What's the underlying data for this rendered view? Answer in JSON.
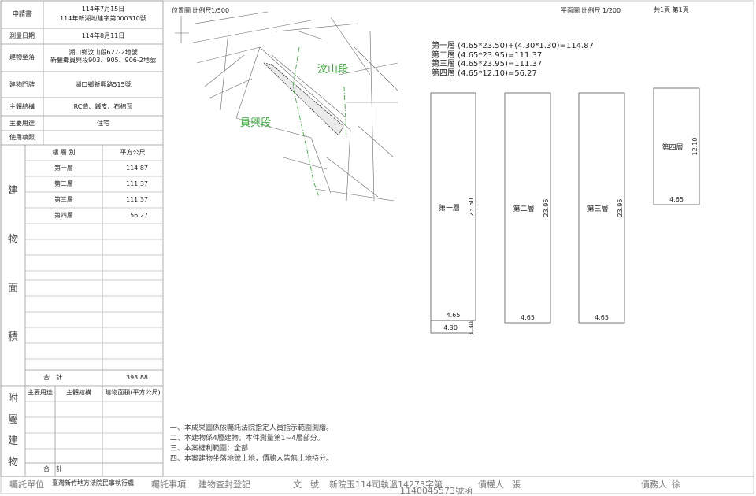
{
  "header": {
    "application_label": "申請書",
    "application_date": "114年7月15日",
    "application_no": "114年新湖地建字第000310號",
    "survey_date_label": "測量日期",
    "survey_date": "114年8月11日",
    "location_label": "建物坐落",
    "location_lines": [
      "湖口鄉汶山段627-2地號",
      "新豐鄉員興段903、905、906-2地號"
    ],
    "address_label": "建物門牌",
    "address": "湖口鄉新興路515號",
    "structure_label": "主體結構",
    "structure": "RC造、鐵皮、石棉瓦",
    "use_label": "主要用途",
    "use": "住宅",
    "license_label": "使用執照"
  },
  "area_table": {
    "side_label": [
      "建",
      "物",
      "面",
      "積"
    ],
    "columns": [
      "樓 層 別",
      "平方公尺"
    ],
    "rows": [
      [
        "第一層",
        "114.87"
      ],
      [
        "第二層",
        "111.37"
      ],
      [
        "第三層",
        "111.37"
      ],
      [
        "第四層",
        "56.27"
      ]
    ],
    "total_label": "合　計",
    "total": "393.88"
  },
  "annex_table": {
    "side_label": [
      "附",
      "屬",
      "建",
      "物"
    ],
    "columns": [
      "主要用途",
      "主體結構",
      "建物面積(平方公尺)"
    ],
    "total_label": "合　計"
  },
  "location_map": {
    "title": "位置圖 比例尺",
    "scale": "1/500",
    "sections": [
      "汶山段",
      "員興段"
    ]
  },
  "notes": [
    "一、本成果圖係依囑託法院指定人員指示範圍測繪。",
    "二、本建物係4層建物，本件測量第1~4層部分。",
    "三、本案權利範圍：全部",
    "四、本案建物坐落地號土地，債務人皆無土地持分。"
  ],
  "floor_plan": {
    "title": "平面圖 比例尺",
    "scale": "1/200",
    "page": "共1頁 第1頁",
    "formulas": [
      "第一層 (4.65*23.50)+(4.30*1.30)=114.87",
      "第二層 (4.65*23.95)=111.37",
      "第三層 (4.65*23.95)=111.37",
      "第四層 (4.65*12.10)=56.27"
    ],
    "floors": [
      {
        "name": "第一層",
        "length": "23.50",
        "width": "4.65",
        "extra_width": "4.30",
        "extra_length": "1.30"
      },
      {
        "name": "第二層",
        "length": "23.95",
        "width": "4.65"
      },
      {
        "name": "第三層",
        "length": "23.95",
        "width": "4.65"
      },
      {
        "name": "第四層",
        "length": "12.10",
        "width": "4.65"
      }
    ]
  },
  "footer": {
    "unit_label": "囑託單位",
    "unit": "臺灣新竹地方法院民事執行處",
    "matter_label": "囑託事項",
    "matter": "建物查封登記",
    "doc_label": "文　號",
    "doc_no": "新院玉114司執溫14273字第",
    "doc_no2": "1140045573號函",
    "creditor_label": "債權人",
    "creditor": "張",
    "debtor_label": "債務人",
    "debtor": "徐"
  }
}
